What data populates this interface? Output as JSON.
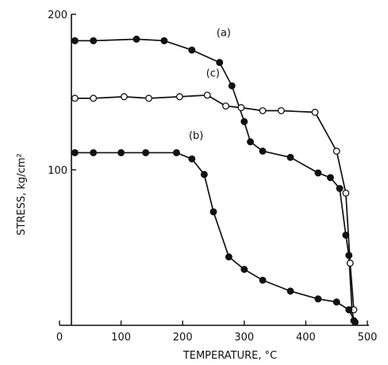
{
  "chart_data": {
    "type": "line",
    "xlabel": "TEMPERATURE, °C",
    "ylabel": "STRESS, kg/cm²",
    "xlim": [
      0,
      500
    ],
    "ylim": [
      0,
      200
    ],
    "xticks": [
      0,
      100,
      200,
      300,
      400,
      500
    ],
    "yticks": [
      100,
      200
    ],
    "grid": false,
    "legend": "none",
    "series": [
      {
        "name": "(a)",
        "marker": "filled",
        "label_at": [
          255,
          186
        ],
        "x": [
          25,
          55,
          125,
          170,
          215,
          260,
          280,
          300,
          310,
          330,
          375,
          420,
          440,
          455,
          465,
          470,
          475,
          478
        ],
        "y": [
          183,
          183,
          184,
          183,
          177,
          169,
          154,
          131,
          118,
          112,
          108,
          98,
          95,
          88,
          58,
          45,
          10,
          3
        ]
      },
      {
        "name": "(c)",
        "marker": "open",
        "label_at": [
          238,
          160
        ],
        "x": [
          25,
          55,
          105,
          145,
          195,
          240,
          270,
          295,
          330,
          360,
          415,
          450,
          465,
          472,
          478
        ],
        "y": [
          146,
          146,
          147,
          146,
          147,
          148,
          141,
          140,
          138,
          138,
          137,
          112,
          85,
          40,
          10
        ]
      },
      {
        "name": "(b)",
        "marker": "filled",
        "label_at": [
          210,
          120
        ],
        "x": [
          25,
          55,
          100,
          140,
          190,
          215,
          235,
          250,
          275,
          300,
          330,
          375,
          420,
          450,
          470,
          480
        ],
        "y": [
          111,
          111,
          111,
          111,
          111,
          107,
          97,
          73,
          44,
          36,
          29,
          22,
          17,
          15,
          10,
          2
        ]
      }
    ]
  }
}
